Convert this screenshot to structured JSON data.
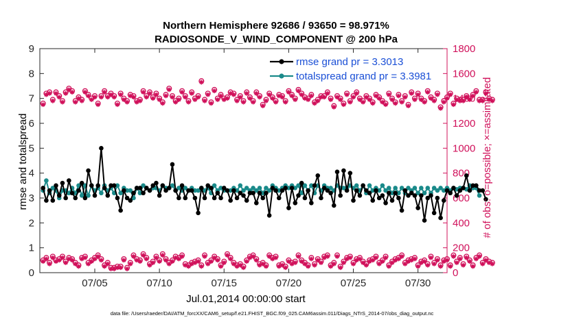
{
  "chart_data": {
    "type": "line",
    "title_line1": "Northern Hemisphere 92686 / 93650 = 98.971%",
    "title_line2": "RADIOSONDE_V_WIND_COMPONENT @ 200 hPa",
    "xlabel": "Jul.01,2014 00:00:00 start",
    "ylabel_left": "rmse and totalspread",
    "ylabel_right": "# of obs: o=possible; ×=assimilated",
    "footer": "data file: /Users/raeder/DAI/ATM_forcXX/CAM6_setup/f.e21.FHIST_BGC.f09_025.CAM6assim.011/Diags_NTrS_2014-07/obs_diag_output.nc",
    "xlim": [
      0.75,
      32.25
    ],
    "ylim_left": [
      0,
      9
    ],
    "ylim_right": [
      0,
      1800
    ],
    "xticks": [
      5,
      10,
      15,
      20,
      25,
      30
    ],
    "xtick_labels": [
      "07/05",
      "07/10",
      "07/15",
      "07/20",
      "07/25",
      "07/30"
    ],
    "yticks_left": [
      "0",
      "1",
      "2",
      "3",
      "4",
      "5",
      "6",
      "7",
      "8",
      "9"
    ],
    "yticks_right": [
      "0",
      "200",
      "400",
      "600",
      "800",
      "1000",
      "1200",
      "1400",
      "1600",
      "1800"
    ],
    "legend": [
      {
        "name": "rmse grand pr = 3.3013",
        "color": "#000000"
      },
      {
        "name": "totalspread grand pr = 3.3981",
        "color": "#1a8a8a"
      }
    ],
    "colors": {
      "rmse": "#000000",
      "spread": "#1a8a8a",
      "obs": "#d0105a",
      "legend_text": "#1a4fd6"
    },
    "x_start": 1.0,
    "x_step": 0.25,
    "series": [
      {
        "name": "rmse",
        "values": [
          3.4,
          2.9,
          3.3,
          2.9,
          3.5,
          3.1,
          3.6,
          3.0,
          3.7,
          3.2,
          3.0,
          3.3,
          3.6,
          3.0,
          4.1,
          3.5,
          3.1,
          3.5,
          5.0,
          3.4,
          3.1,
          3.5,
          3.5,
          3.0,
          2.5,
          3.3,
          3.0,
          2.9,
          3.2,
          3.4,
          3.4,
          3.2,
          3.4,
          3.3,
          3.5,
          3.6,
          3.1,
          3.5,
          3.3,
          3.4,
          4.35,
          3.3,
          3.0,
          3.5,
          3.0,
          3.3,
          3.3,
          3.0,
          2.4,
          3.4,
          3.0,
          3.5,
          3.4,
          3.0,
          3.2,
          3.0,
          3.4,
          3.3,
          2.9,
          3.3,
          3.0,
          3.2,
          3.1,
          2.9,
          3.2,
          3.2,
          2.8,
          3.2,
          3.0,
          3.2,
          2.3,
          3.4,
          3.3,
          3.0,
          3.3,
          3.4,
          2.6,
          3.4,
          2.8,
          3.1,
          3.6,
          3.0,
          3.3,
          2.8,
          3.5,
          3.9,
          3.0,
          3.4,
          3.3,
          3.2,
          2.7,
          4.05,
          3.1,
          4.1,
          3.3,
          4.0,
          2.9,
          3.3,
          3.1,
          3.5,
          3.3,
          3.2,
          2.9,
          3.3,
          3.0,
          3.1,
          2.8,
          3.2,
          2.9,
          3.2,
          3.0,
          2.5,
          3.3,
          3.1,
          3.2,
          3.1,
          2.6,
          3.1,
          2.1,
          3.0,
          3.1,
          2.4,
          3.0,
          2.2,
          2.9,
          3.3,
          3.2,
          3.4,
          3.1,
          3.3,
          3.4,
          3.9,
          3.3,
          3.5,
          3.5,
          3.3,
          3.3,
          2.95
        ]
      },
      {
        "name": "totalspread",
        "values": [
          3.3,
          3.7,
          3.2,
          3.4,
          3.3,
          3.0,
          3.3,
          3.3,
          3.2,
          3.4,
          3.2,
          3.5,
          3.1,
          3.5,
          3.1,
          3.5,
          3.3,
          3.4,
          3.2,
          3.5,
          3.3,
          3.4,
          3.2,
          3.5,
          3.2,
          3.4,
          3.3,
          3.3,
          3.0,
          3.4,
          3.2,
          3.5,
          3.4,
          3.3,
          3.4,
          3.4,
          3.3,
          3.5,
          3.4,
          3.4,
          3.5,
          3.3,
          3.4,
          3.3,
          3.4,
          3.3,
          3.4,
          3.3,
          3.3,
          3.4,
          3.3,
          3.4,
          3.2,
          3.5,
          3.3,
          3.4,
          3.3,
          3.3,
          3.3,
          3.4,
          3.3,
          3.5,
          3.3,
          3.4,
          3.3,
          3.4,
          3.3,
          3.4,
          3.2,
          3.4,
          3.3,
          3.5,
          3.4,
          3.3,
          3.4,
          3.5,
          3.4,
          3.5,
          3.4,
          3.5,
          3.2,
          3.5,
          3.3,
          3.5,
          3.2,
          3.5,
          3.3,
          3.5,
          3.4,
          3.4,
          3.3,
          3.5,
          3.4,
          3.4,
          3.4,
          3.5,
          3.4,
          3.5,
          3.3,
          3.5,
          3.2,
          3.5,
          3.3,
          3.4,
          3.3,
          3.5,
          3.3,
          3.4,
          3.2,
          3.4,
          3.2,
          3.4,
          3.2,
          3.4,
          3.3,
          3.4,
          3.2,
          3.4,
          3.2,
          3.4,
          3.2,
          3.4,
          3.3,
          3.4,
          3.3,
          3.4,
          3.3,
          3.4,
          3.35,
          3.4,
          3.4,
          3.35,
          3.5,
          3.4,
          3.4,
          3.1
        ]
      },
      {
        "name": "obs_upper_possible",
        "values": [
          1360,
          1440,
          1450,
          1390,
          1450,
          1420,
          1380,
          1450,
          1480,
          1460,
          1380,
          1410,
          1390,
          1460,
          1430,
          1400,
          1420,
          1360,
          1420,
          1460,
          1420,
          1440,
          1420,
          1360,
          1440,
          1400,
          1380,
          1430,
          1420,
          1380,
          1390,
          1460,
          1420,
          1450,
          1410,
          1440,
          1400,
          1370,
          1430,
          1480,
          1420,
          1380,
          1400,
          1460,
          1420,
          1380,
          1450,
          1400,
          1420,
          1540,
          1390,
          1440,
          1370,
          1470,
          1400,
          1430,
          1400,
          1410,
          1450,
          1440,
          1390,
          1420,
          1380,
          1450,
          1410,
          1380,
          1450,
          1420,
          1350,
          1390,
          1440,
          1410,
          1380,
          1430,
          1420,
          1380,
          1460,
          1430,
          1400,
          1470,
          1440,
          1410,
          1400,
          1430,
          1370,
          1390,
          1420,
          1420,
          1450,
          1400,
          1340,
          1420,
          1400,
          1360,
          1440,
          1380,
          1420,
          1450,
          1400,
          1380,
          1420,
          1400,
          1370,
          1430,
          1410,
          1380,
          1360,
          1440,
          1400,
          1370,
          1430,
          1380,
          1420,
          1350,
          1450,
          1400,
          1440,
          1400,
          1380,
          1460,
          1410,
          1390,
          1440,
          1330,
          1380,
          1410,
          1440,
          1360,
          1400,
          1390,
          1390,
          1420,
          1400,
          1430,
          1460,
          1390,
          1390,
          1450,
          1400,
          1390
        ]
      },
      {
        "name": "obs_upper_assimilated",
        "values": [
          1350,
          1430,
          1440,
          1380,
          1440,
          1410,
          1370,
          1440,
          1470,
          1450,
          1370,
          1400,
          1380,
          1450,
          1420,
          1390,
          1410,
          1350,
          1410,
          1450,
          1410,
          1430,
          1410,
          1350,
          1430,
          1390,
          1370,
          1420,
          1410,
          1370,
          1380,
          1450,
          1410,
          1440,
          1400,
          1430,
          1390,
          1360,
          1420,
          1470,
          1410,
          1370,
          1390,
          1450,
          1410,
          1370,
          1440,
          1390,
          1410,
          1530,
          1380,
          1430,
          1360,
          1460,
          1390,
          1420,
          1390,
          1400,
          1440,
          1430,
          1380,
          1410,
          1370,
          1440,
          1400,
          1370,
          1440,
          1410,
          1340,
          1380,
          1430,
          1400,
          1370,
          1420,
          1410,
          1370,
          1450,
          1420,
          1390,
          1460,
          1430,
          1400,
          1390,
          1420,
          1360,
          1380,
          1410,
          1410,
          1440,
          1390,
          1330,
          1410,
          1390,
          1350,
          1430,
          1370,
          1410,
          1440,
          1390,
          1370,
          1410,
          1390,
          1360,
          1420,
          1400,
          1370,
          1350,
          1430,
          1390,
          1360,
          1420,
          1370,
          1410,
          1340,
          1440,
          1390,
          1430,
          1390,
          1370,
          1450,
          1400,
          1380,
          1430,
          1320,
          1370,
          1400,
          1430,
          1350,
          1390,
          1380,
          1380,
          1410,
          1390,
          1420,
          1450,
          1380,
          1380,
          1440,
          1390,
          1380
        ]
      },
      {
        "name": "obs_lower_possible",
        "values": [
          100,
          120,
          80,
          130,
          100,
          110,
          130,
          90,
          120,
          110,
          80,
          60,
          120,
          130,
          80,
          100,
          120,
          140,
          110,
          60,
          80,
          40,
          40,
          50,
          50,
          110,
          40,
          80,
          140,
          110,
          100,
          150,
          120,
          70,
          90,
          130,
          100,
          150,
          110,
          80,
          100,
          130,
          120,
          140,
          70,
          60,
          80,
          90,
          100,
          60,
          140,
          80,
          100,
          130,
          110,
          60,
          90,
          150,
          120,
          80,
          60,
          70,
          50,
          100,
          130,
          140,
          110,
          70,
          80,
          60,
          140,
          120,
          130,
          60,
          70,
          50,
          100,
          80,
          90,
          140,
          100,
          80,
          60,
          120,
          70,
          110,
          90,
          130,
          140,
          60,
          80,
          140,
          50,
          90,
          120,
          130,
          80,
          110,
          120,
          90,
          70,
          100,
          110,
          130,
          80,
          100,
          130,
          60,
          90,
          110,
          120,
          140,
          80,
          100,
          110,
          120,
          60,
          90,
          100,
          70,
          130,
          80,
          110,
          60,
          100,
          110,
          60,
          140,
          90,
          120,
          70,
          130,
          100,
          60,
          120,
          140,
          80,
          110,
          90,
          80
        ]
      },
      {
        "name": "obs_lower_assimilated",
        "values": [
          90,
          110,
          70,
          120,
          90,
          100,
          120,
          80,
          110,
          100,
          70,
          50,
          110,
          120,
          70,
          90,
          110,
          130,
          100,
          50,
          70,
          30,
          30,
          40,
          40,
          100,
          30,
          70,
          130,
          100,
          90,
          140,
          110,
          60,
          80,
          120,
          90,
          140,
          100,
          70,
          90,
          120,
          110,
          130,
          60,
          50,
          70,
          80,
          90,
          50,
          130,
          70,
          90,
          120,
          100,
          50,
          80,
          140,
          110,
          70,
          50,
          60,
          40,
          90,
          120,
          130,
          100,
          60,
          70,
          50,
          130,
          110,
          120,
          50,
          60,
          40,
          90,
          70,
          80,
          130,
          90,
          70,
          50,
          110,
          60,
          100,
          80,
          120,
          130,
          50,
          70,
          130,
          40,
          80,
          110,
          120,
          70,
          100,
          110,
          80,
          60,
          90,
          100,
          120,
          70,
          90,
          120,
          50,
          80,
          100,
          110,
          130,
          70,
          90,
          100,
          110,
          50,
          80,
          90,
          60,
          120,
          70,
          100,
          50,
          90,
          100,
          50,
          130,
          80,
          110,
          60,
          120,
          90,
          50,
          110,
          130,
          70,
          100,
          80,
          70
        ]
      }
    ]
  }
}
